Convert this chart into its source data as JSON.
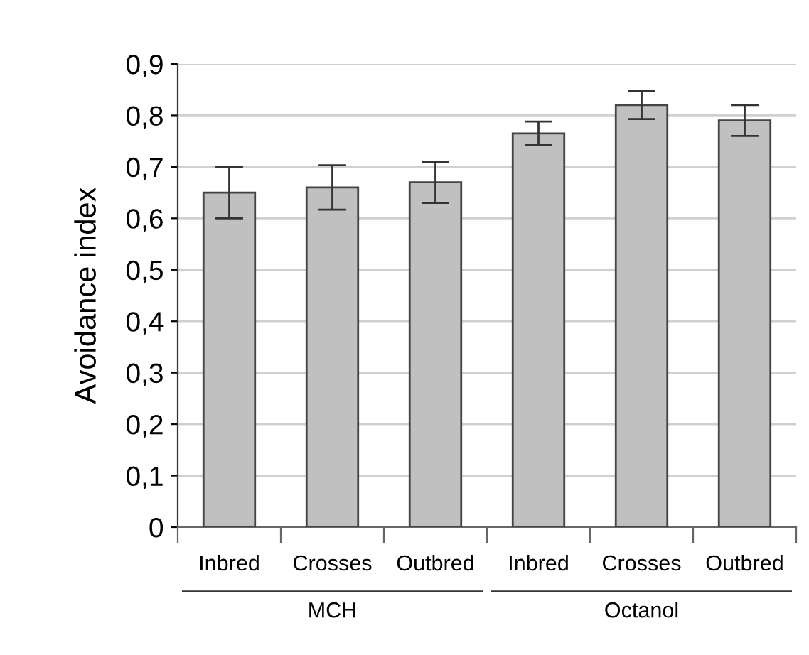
{
  "chart_data": {
    "type": "bar",
    "ylabel": "Avoidance index",
    "categories": [
      "Inbred",
      "Crosses",
      "Outbred",
      "Inbred",
      "Crosses",
      "Outbred"
    ],
    "values": [
      0.65,
      0.66,
      0.67,
      0.765,
      0.82,
      0.79
    ],
    "errors": [
      0.05,
      0.043,
      0.04,
      0.023,
      0.027,
      0.03
    ],
    "color": "#c0c0c0",
    "ylim": [
      0,
      0.9
    ],
    "yticks": [
      0,
      {
        "value": 0.1,
        "label": "0,1"
      },
      {
        "value": 0.2,
        "label": "0,2"
      },
      {
        "value": 0.3,
        "label": "0,3"
      },
      {
        "value": 0.4,
        "label": "0,4"
      },
      {
        "value": 0.5,
        "label": "0,5"
      },
      {
        "value": 0.6,
        "label": "0,6"
      },
      {
        "value": 0.7,
        "label": "0,7"
      },
      {
        "value": 0.8,
        "label": "0,8"
      },
      {
        "value": 0.9,
        "label": "0,9"
      }
    ],
    "grid": "y",
    "annotations": [
      "MCH",
      "Octanol"
    ]
  }
}
